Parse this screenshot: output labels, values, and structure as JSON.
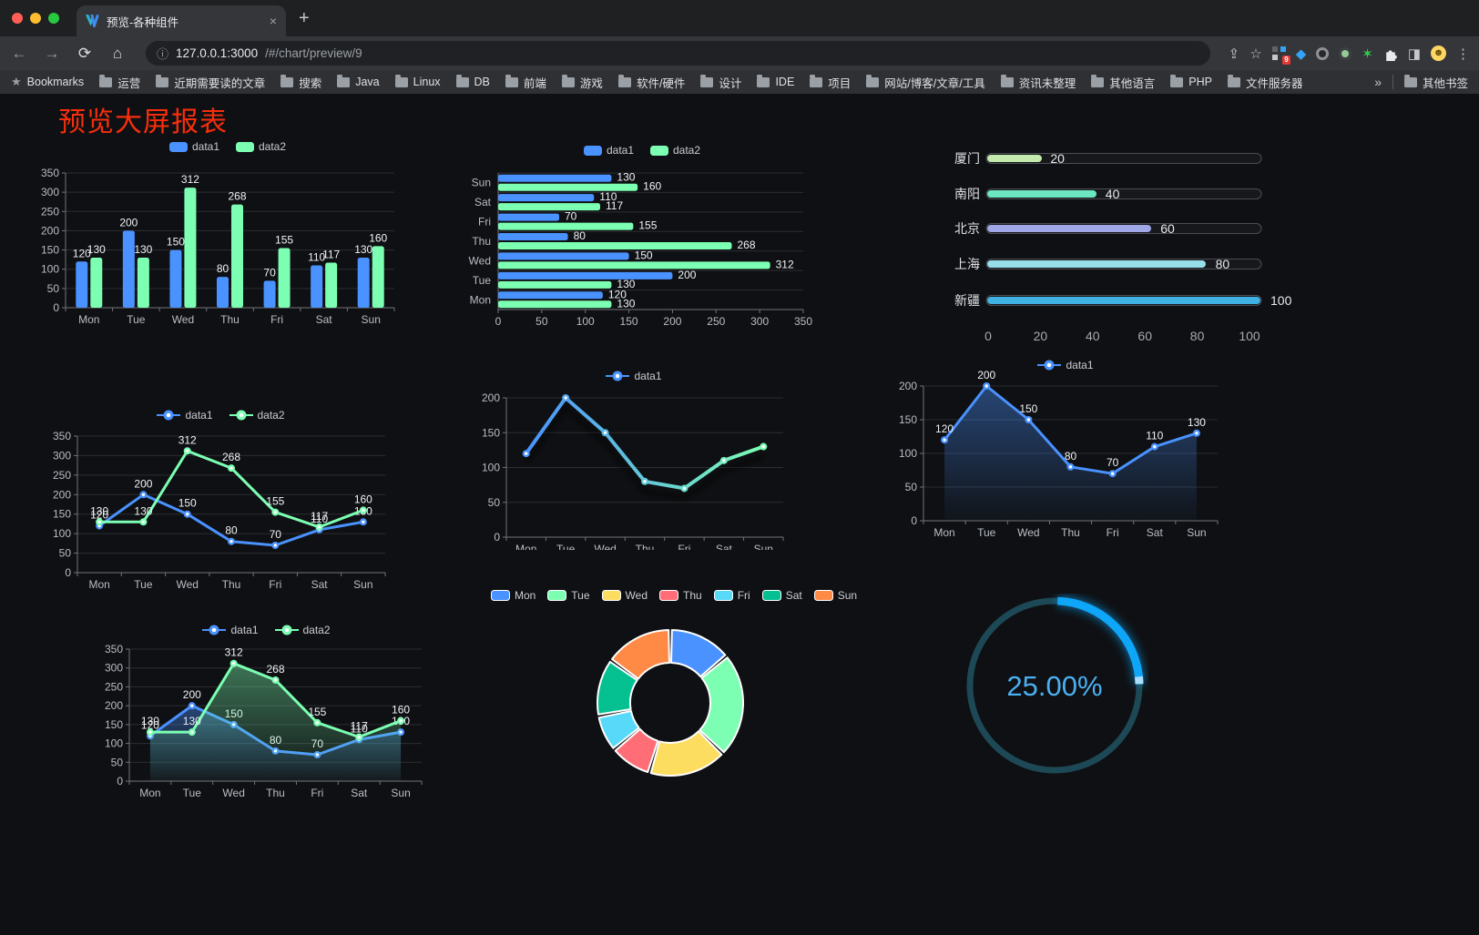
{
  "browser": {
    "tab_title": "预览-各种组件",
    "new_tab_plus": "+",
    "close_x": "×",
    "url_host": "127.0.0.1:3000",
    "url_path": "/#/chart/preview/9",
    "extension_badge": "9",
    "bookmarks_label": "Bookmarks",
    "bookmark_folders": [
      "运营",
      "近期需要读的文章",
      "搜索",
      "Java",
      "Linux",
      "DB",
      "前端",
      "游戏",
      "软件/硬件",
      "设计",
      "IDE",
      "项目",
      "网站/博客/文章/工具",
      "资讯未整理",
      "其他语言",
      "PHP",
      "文件服务器"
    ],
    "overflow_chevron": "»",
    "other_bookmarks": "其他书签"
  },
  "page": {
    "title": "预览大屏报表",
    "title_color": "#f72e0c"
  },
  "chart_data": [
    {
      "id": "bar-grouped",
      "type": "bar",
      "legend": [
        "data1",
        "data2"
      ],
      "legend_pos": "top",
      "categories": [
        "Mon",
        "Tue",
        "Wed",
        "Thu",
        "Fri",
        "Sat",
        "Sun"
      ],
      "series": [
        {
          "name": "data1",
          "color": "#4992ff",
          "values": [
            120,
            200,
            150,
            80,
            70,
            110,
            130
          ]
        },
        {
          "name": "data2",
          "color": "#7cffb2",
          "values": [
            130,
            130,
            312,
            268,
            155,
            117,
            160
          ]
        }
      ],
      "ylim": [
        0,
        350
      ],
      "yticks": [
        0,
        50,
        100,
        150,
        200,
        250,
        300,
        350
      ],
      "labels": true,
      "grid": true
    },
    {
      "id": "bar-horizontal",
      "type": "hbar",
      "legend": [
        "data1",
        "data2"
      ],
      "legend_pos": "top",
      "categories": [
        "Sun",
        "Sat",
        "Fri",
        "Thu",
        "Wed",
        "Tue",
        "Mon"
      ],
      "series": [
        {
          "name": "data1",
          "color": "#4992ff",
          "values": [
            130,
            110,
            70,
            80,
            150,
            200,
            120
          ]
        },
        {
          "name": "data2",
          "color": "#7cffb2",
          "values": [
            160,
            117,
            155,
            268,
            312,
            130,
            130
          ]
        }
      ],
      "xlim": [
        0,
        350
      ],
      "xticks": [
        0,
        50,
        100,
        150,
        200,
        250,
        300,
        350
      ],
      "labels": true,
      "grid": true
    },
    {
      "id": "progress",
      "type": "progress-bars",
      "items": [
        {
          "label": "厦门",
          "value": 20,
          "color": "#c4ebad"
        },
        {
          "label": "南阳",
          "value": 40,
          "color": "#6be6c1"
        },
        {
          "label": "北京",
          "value": 60,
          "color": "#a0a7e6"
        },
        {
          "label": "上海",
          "value": 80,
          "color": "#96dee8"
        },
        {
          "label": "新疆",
          "value": 100,
          "color": "#3fb1e3"
        }
      ],
      "xlim": [
        0,
        100
      ],
      "xticks": [
        0,
        20,
        40,
        60,
        80,
        100
      ]
    },
    {
      "id": "line-dual",
      "type": "line",
      "legend": [
        "data1",
        "data2"
      ],
      "legend_pos": "top",
      "categories": [
        "Mon",
        "Tue",
        "Wed",
        "Thu",
        "Fri",
        "Sat",
        "Sun"
      ],
      "series": [
        {
          "name": "data1",
          "color": "#4992ff",
          "values": [
            120,
            200,
            150,
            80,
            70,
            110,
            130
          ]
        },
        {
          "name": "data2",
          "color": "#7cffb2",
          "values": [
            130,
            130,
            312,
            268,
            155,
            117,
            160
          ]
        }
      ],
      "ylim": [
        0,
        350
      ],
      "yticks": [
        0,
        50,
        100,
        150,
        200,
        250,
        300,
        350
      ],
      "labels": true,
      "grid": true
    },
    {
      "id": "line-gradient",
      "type": "line",
      "legend": [
        "data1"
      ],
      "legend_pos": "top",
      "categories": [
        "Mon",
        "Tue",
        "Wed",
        "Thu",
        "Fri",
        "Sat",
        "Sun"
      ],
      "series": [
        {
          "name": "data1",
          "gradient": [
            "#4992ff",
            "#7cffb2"
          ],
          "values": [
            120,
            200,
            150,
            80,
            70,
            110,
            130
          ]
        }
      ],
      "ylim": [
        0,
        200
      ],
      "yticks": [
        0,
        50,
        100,
        150,
        200
      ],
      "labels": false,
      "shadow": true,
      "grid": true
    },
    {
      "id": "line-area",
      "type": "line",
      "legend": [
        "data1"
      ],
      "legend_pos": "top",
      "categories": [
        "Mon",
        "Tue",
        "Wed",
        "Thu",
        "Fri",
        "Sat",
        "Sun"
      ],
      "series": [
        {
          "name": "data1",
          "color": "#4992ff",
          "area": true,
          "values": [
            120,
            200,
            150,
            80,
            70,
            110,
            130
          ]
        }
      ],
      "ylim": [
        0,
        200
      ],
      "yticks": [
        0,
        50,
        100,
        150,
        200
      ],
      "labels": true,
      "grid": true
    },
    {
      "id": "line-area-dual",
      "type": "line",
      "legend": [
        "data1",
        "data2"
      ],
      "legend_pos": "top",
      "categories": [
        "Mon",
        "Tue",
        "Wed",
        "Thu",
        "Fri",
        "Sat",
        "Sun"
      ],
      "series": [
        {
          "name": "data1",
          "color": "#4992ff",
          "area": true,
          "values": [
            120,
            200,
            150,
            80,
            70,
            110,
            130
          ]
        },
        {
          "name": "data2",
          "color": "#7cffb2",
          "area": true,
          "values": [
            130,
            130,
            312,
            268,
            155,
            117,
            160
          ]
        }
      ],
      "ylim": [
        0,
        350
      ],
      "yticks": [
        0,
        50,
        100,
        150,
        200,
        250,
        300,
        350
      ],
      "labels": true,
      "grid": true
    },
    {
      "id": "donut",
      "type": "pie",
      "legend_pos": "top",
      "items": [
        {
          "name": "Mon",
          "value": 120,
          "color": "#4992ff"
        },
        {
          "name": "Tue",
          "value": 200,
          "color": "#7cffb2"
        },
        {
          "name": "Wed",
          "value": 150,
          "color": "#fddd60"
        },
        {
          "name": "Thu",
          "value": 80,
          "color": "#ff6e76"
        },
        {
          "name": "Fri",
          "value": 70,
          "color": "#58d9f9"
        },
        {
          "name": "Sat",
          "value": 110,
          "color": "#05c091"
        },
        {
          "name": "Sun",
          "value": 130,
          "color": "#ff8a45"
        }
      ]
    },
    {
      "id": "gauge",
      "type": "gauge",
      "value": 25,
      "display": "25.00%",
      "color": "#0da6f8",
      "track_color": "#1d4855",
      "text_color": "#4ab0f2"
    }
  ]
}
